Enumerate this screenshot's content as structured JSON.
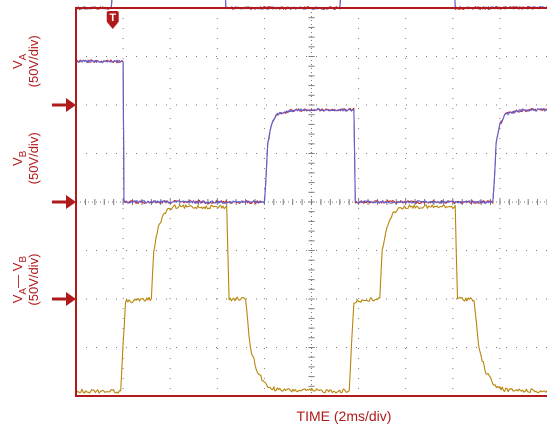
{
  "chart_data": {
    "type": "line",
    "xlabel": "TIME (2ms/div)",
    "x_divisions": 10,
    "y_divisions": 8,
    "trigger_marker": "T",
    "colors": {
      "frame": "#b01a1a",
      "grid": "#7a7a7a",
      "label": "#b01a1a",
      "va_vb_trace": "#b8860b",
      "channel_red": "#c62828",
      "channel_blue": "#5b63d8"
    },
    "channels": [
      {
        "id": "VA",
        "label_main": "V",
        "label_sub": "A",
        "scale": "(50V/div)",
        "ground_div_from_top": 2
      },
      {
        "id": "VB",
        "label_main": "V",
        "label_sub": "B",
        "scale": "(50V/div)",
        "ground_div_from_top": 4
      },
      {
        "id": "VA-VB",
        "label_parts": [
          "V",
          "A",
          "— V",
          "B"
        ],
        "scale": "(50V/div)",
        "ground_div_from_top": 6
      }
    ],
    "series": [
      {
        "name": "VA",
        "unit": "div",
        "points": [
          [
            0,
            2.0
          ],
          [
            0.75,
            2.0
          ],
          [
            0.78,
            2.4
          ],
          [
            0.82,
            3.2
          ],
          [
            0.9,
            3.6
          ],
          [
            1.0,
            3.78
          ],
          [
            1.3,
            3.88
          ],
          [
            1.6,
            3.9
          ],
          [
            3.05,
            3.9
          ],
          [
            3.1,
            3.85
          ],
          [
            3.12,
            3.85
          ],
          [
            3.18,
            2.0
          ],
          [
            5.6,
            2.0
          ],
          [
            5.63,
            2.4
          ],
          [
            5.67,
            3.2
          ],
          [
            5.75,
            3.6
          ],
          [
            5.85,
            3.78
          ],
          [
            6.15,
            3.88
          ],
          [
            6.45,
            3.9
          ],
          [
            7.95,
            3.9
          ],
          [
            8.0,
            3.85
          ],
          [
            8.05,
            2.0
          ],
          [
            10,
            2.0
          ]
        ]
      },
      {
        "name": "VB",
        "unit": "div",
        "points": [
          [
            0,
            2.9
          ],
          [
            1.0,
            2.9
          ],
          [
            1.02,
            0.0
          ],
          [
            4.0,
            0.0
          ],
          [
            4.03,
            0.4
          ],
          [
            4.07,
            1.2
          ],
          [
            4.15,
            1.6
          ],
          [
            4.25,
            1.8
          ],
          [
            4.55,
            1.88
          ],
          [
            4.85,
            1.9
          ],
          [
            5.9,
            1.9
          ],
          [
            5.93,
            0.0
          ],
          [
            8.85,
            0.0
          ],
          [
            8.88,
            0.4
          ],
          [
            8.92,
            1.2
          ],
          [
            9.0,
            1.6
          ],
          [
            9.1,
            1.8
          ],
          [
            9.4,
            1.88
          ],
          [
            9.7,
            1.9
          ],
          [
            10,
            1.9
          ]
        ]
      },
      {
        "name": "VA—VB",
        "unit": "div",
        "points": [
          [
            0,
            -1.9
          ],
          [
            0.95,
            -1.9
          ],
          [
            1.0,
            -0.95
          ],
          [
            1.05,
            -0.05
          ],
          [
            1.6,
            0.0
          ],
          [
            1.65,
            1.0
          ],
          [
            1.75,
            1.5
          ],
          [
            1.9,
            1.8
          ],
          [
            2.1,
            1.9
          ],
          [
            3.2,
            1.9
          ],
          [
            3.25,
            0.0
          ],
          [
            3.6,
            0.0
          ],
          [
            3.7,
            -1.0
          ],
          [
            3.85,
            -1.5
          ],
          [
            4.05,
            -1.8
          ],
          [
            4.3,
            -1.88
          ],
          [
            5.8,
            -1.9
          ],
          [
            5.85,
            -0.95
          ],
          [
            5.9,
            -0.05
          ],
          [
            6.45,
            0.0
          ],
          [
            6.5,
            1.0
          ],
          [
            6.6,
            1.5
          ],
          [
            6.75,
            1.8
          ],
          [
            6.95,
            1.9
          ],
          [
            8.05,
            1.9
          ],
          [
            8.1,
            0.0
          ],
          [
            8.45,
            0.0
          ],
          [
            8.55,
            -1.0
          ],
          [
            8.7,
            -1.5
          ],
          [
            8.9,
            -1.8
          ],
          [
            9.15,
            -1.88
          ],
          [
            10,
            -1.9
          ]
        ]
      }
    ]
  }
}
